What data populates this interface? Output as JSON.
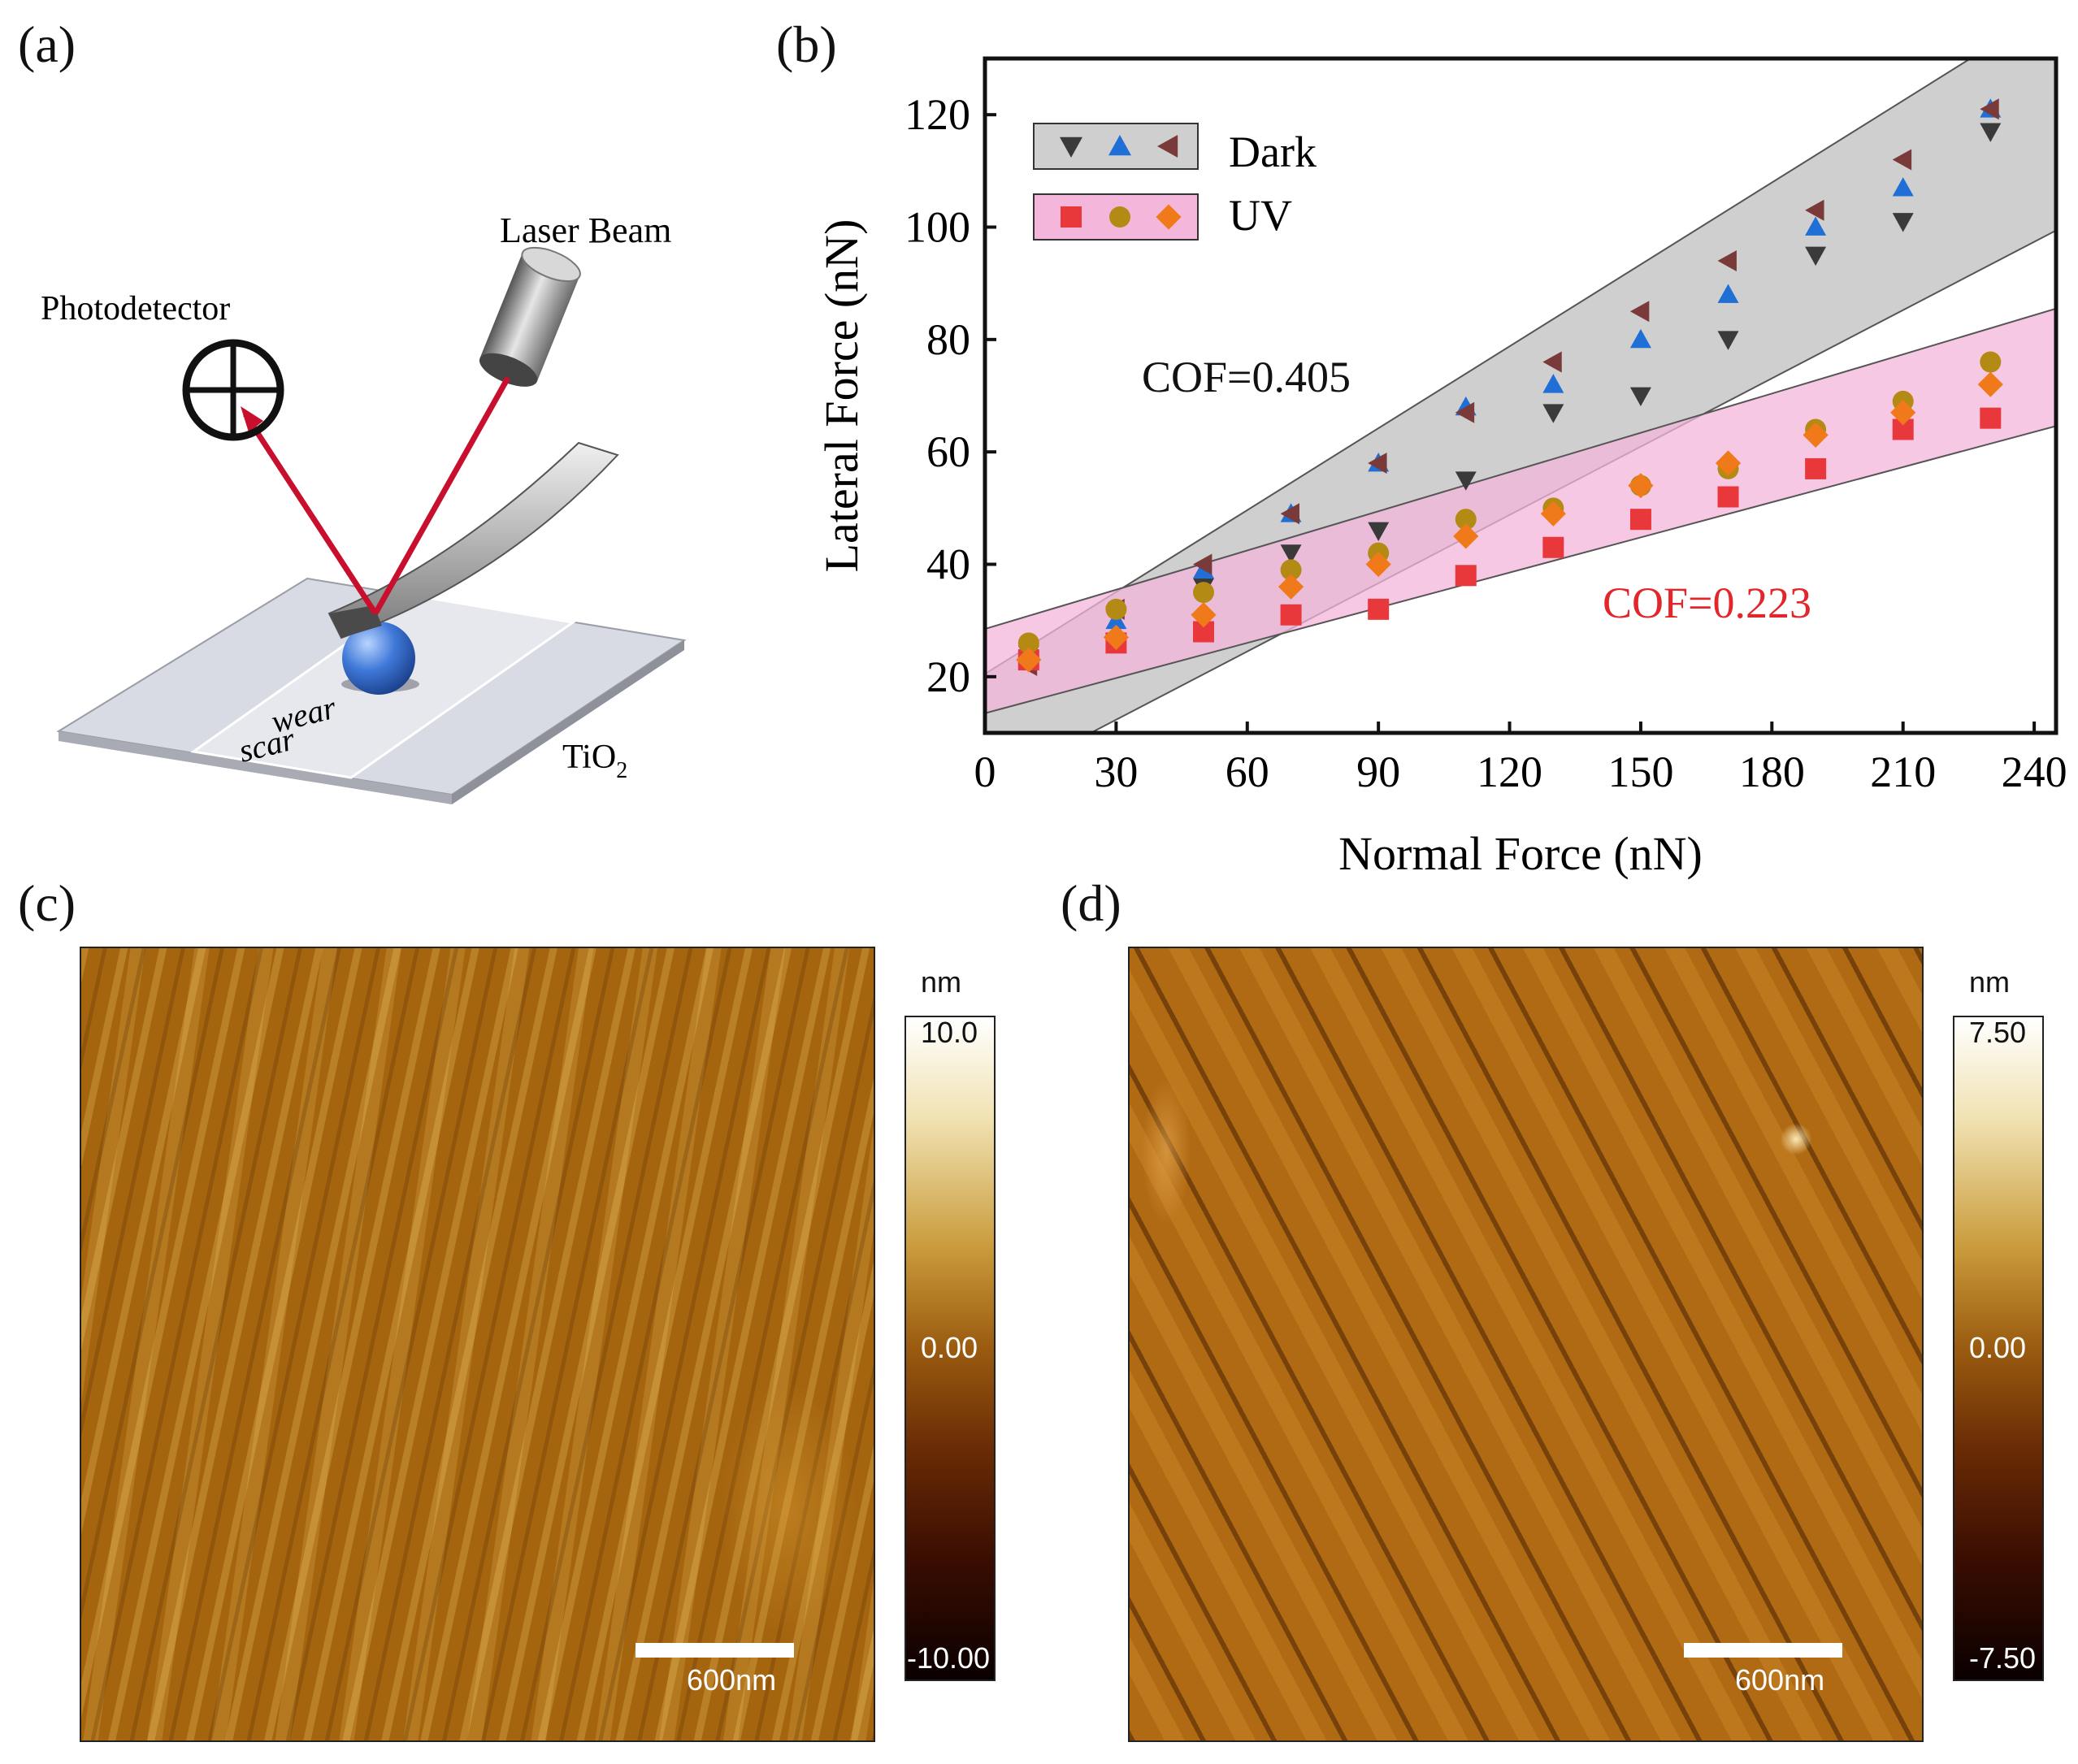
{
  "panels": {
    "a": {
      "label": "(a)",
      "photodetector": "Photodetector",
      "laser": "Laser Beam",
      "wear": "wear",
      "scar": "scar",
      "substrate_main": "TiO",
      "substrate_sub": "2"
    },
    "b": {
      "label": "(b)"
    },
    "c": {
      "label": "(c)",
      "scale_bar": "600nm",
      "colorbar_unit": "nm",
      "colorbar_max": "10.0",
      "colorbar_mid": "0.00",
      "colorbar_min": "-10.00"
    },
    "d": {
      "label": "(d)",
      "scale_bar": "600nm",
      "colorbar_unit": "nm",
      "colorbar_max": "7.50",
      "colorbar_mid": "0.00",
      "colorbar_min": "-7.50"
    }
  },
  "colors": {
    "dark_band": "#cfcfcf",
    "uv_band": "#f4b6db",
    "laser": "#c8102e",
    "cof_uv_text": "#e3262b",
    "afm_mid": "#9a5b10"
  },
  "chart_data": {
    "type": "scatter",
    "xlabel": "Normal Force (nN)",
    "ylabel": "Lateral Force (nN)",
    "xlim": [
      0,
      245
    ],
    "ylim": [
      10,
      130
    ],
    "xticks": [
      0,
      30,
      60,
      90,
      120,
      150,
      180,
      210,
      240
    ],
    "yticks": [
      20,
      40,
      60,
      80,
      100,
      120
    ],
    "legend": [
      {
        "label": "Dark",
        "position": "top-left"
      },
      {
        "label": "UV",
        "position": "top-left"
      }
    ],
    "annotations": [
      {
        "text": "COF=0.405",
        "color": "#111111"
      },
      {
        "text": "COF=0.223",
        "color": "#e3262b"
      }
    ],
    "x": [
      10,
      30,
      50,
      70,
      90,
      110,
      130,
      150,
      170,
      190,
      210,
      230
    ],
    "series": [
      {
        "name": "Dark 1",
        "group": "Dark",
        "marker": "triangle-down",
        "color": "#3a3a3a",
        "values": [
          24,
          31,
          36,
          42,
          46,
          55,
          67,
          70,
          80,
          95,
          101,
          117
        ]
      },
      {
        "name": "Dark 2",
        "group": "Dark",
        "marker": "triangle-up",
        "color": "#1f6fd6",
        "values": [
          24,
          30,
          39,
          49,
          58,
          68,
          72,
          80,
          88,
          100,
          107,
          121
        ]
      },
      {
        "name": "Dark 3",
        "group": "Dark",
        "marker": "triangle-left",
        "color": "#7a3a3a",
        "values": [
          22,
          32,
          40,
          49,
          58,
          67,
          76,
          85,
          94,
          103,
          112,
          121
        ]
      },
      {
        "name": "UV 1",
        "group": "UV",
        "marker": "square",
        "color": "#e8383b",
        "values": [
          23,
          26,
          28,
          31,
          32,
          38,
          43,
          48,
          52,
          57,
          64,
          66
        ]
      },
      {
        "name": "UV 2",
        "group": "UV",
        "marker": "circle",
        "color": "#b38a14",
        "values": [
          26,
          32,
          35,
          39,
          42,
          48,
          50,
          54,
          57,
          64,
          69,
          76
        ]
      },
      {
        "name": "UV 3",
        "group": "UV",
        "marker": "diamond",
        "color": "#f07a1a",
        "values": [
          23,
          27,
          31,
          36,
          40,
          45,
          49,
          54,
          58,
          63,
          67,
          72
        ]
      }
    ],
    "bands": [
      {
        "group": "Dark",
        "x": [
          0,
          245
        ],
        "lower": [
          0.2,
          99.4
        ],
        "upper": [
          20.5,
          139.5
        ]
      },
      {
        "group": "UV",
        "x": [
          0,
          245
        ],
        "lower": [
          13.5,
          64.6
        ],
        "upper": [
          28.5,
          85.5
        ]
      }
    ]
  }
}
